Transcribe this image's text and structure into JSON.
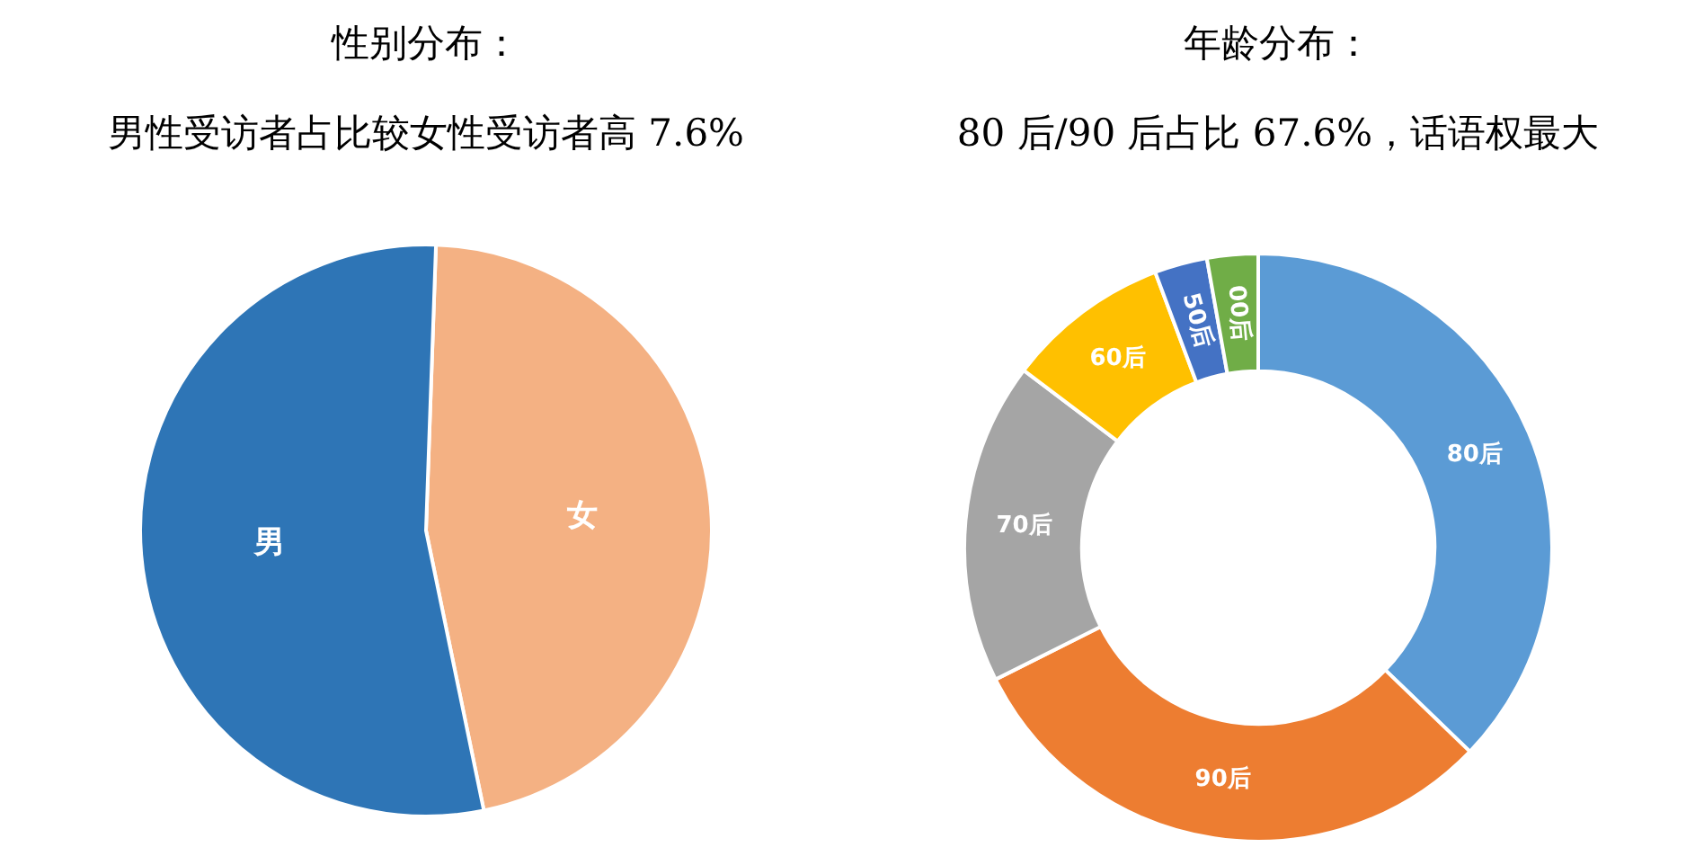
{
  "chart_data": [
    {
      "type": "pie",
      "title": "性别分布：",
      "subtitle": "男性受访者占比较女性受访者高 7.6%",
      "categories": [
        "女",
        "男"
      ],
      "values": [
        46.2,
        53.8
      ],
      "colors": [
        "#f4b183",
        "#2e75b6"
      ]
    },
    {
      "type": "donut",
      "title": "年龄分布：",
      "subtitle": "80 后/90 后占比 67.6%，话语权最大",
      "categories": [
        "80后",
        "90后",
        "70后",
        "60后",
        "50后",
        "00后"
      ],
      "values": [
        37.2,
        30.4,
        17.7,
        9.0,
        2.9,
        2.8
      ],
      "colors": [
        "#5b9bd5",
        "#ed7d31",
        "#a5a5a5",
        "#ffc000",
        "#4472c4",
        "#70ad47"
      ]
    }
  ]
}
